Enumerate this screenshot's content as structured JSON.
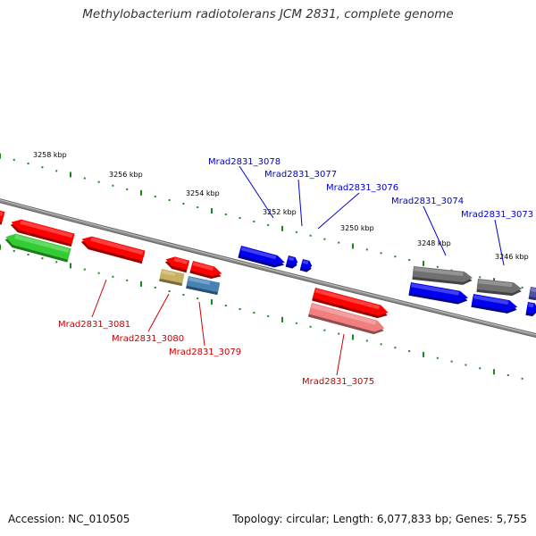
{
  "title": "Methylobacterium radiotolerans JCM 2831, complete genome",
  "footer": {
    "accession": "Accession: NC_010505",
    "topology": "Topology: circular; Length: 6,077,833 bp; Genes: 5,755"
  },
  "colors": {
    "backbone": "#8a8a8a",
    "tick": "#1a8a1a",
    "upper_label": "#0000cc",
    "lower_label": "#cc0000",
    "red": "#ff0000",
    "blue": "#0000ee",
    "green": "#33cc33",
    "gray": "#707070",
    "pink": "#f08080",
    "olive": "#c8b060",
    "steelblue": "#4682b4",
    "purple": "#5050a0"
  },
  "scale_labels": [
    "3258 kbp",
    "3256 kbp",
    "3254 kbp",
    "3252 kbp",
    "3250 kbp",
    "3248 kbp",
    "3246 kbp"
  ],
  "upper_genes": [
    "Mrad2831_3078",
    "Mrad2831_3077",
    "Mrad2831_3076",
    "Mrad2831_3074",
    "Mrad2831_3073"
  ],
  "lower_genes": [
    "Mrad2831_3081",
    "Mrad2831_3080",
    "Mrad2831_3079",
    "Mrad2831_3075"
  ],
  "features": [
    {
      "color": "red",
      "strand": "upper",
      "dir": "left"
    },
    {
      "color": "red",
      "strand": "upper",
      "dir": "left"
    },
    {
      "color": "red",
      "strand": "upper",
      "dir": "left"
    },
    {
      "color": "green",
      "strand": "lower",
      "dir": "left"
    },
    {
      "color": "red",
      "strand": "upper",
      "dir": "left"
    },
    {
      "color": "red",
      "strand": "upper",
      "dir": "right"
    },
    {
      "color": "olive",
      "strand": "lower",
      "dir": "none"
    },
    {
      "color": "steelblue",
      "strand": "lower",
      "dir": "none"
    },
    {
      "color": "blue",
      "strand": "upper",
      "dir": "right"
    },
    {
      "color": "blue",
      "strand": "upper",
      "dir": "right"
    },
    {
      "color": "blue",
      "strand": "upper",
      "dir": "right"
    },
    {
      "color": "red",
      "strand": "upper",
      "dir": "right"
    },
    {
      "color": "pink",
      "strand": "lower",
      "dir": "right"
    },
    {
      "color": "gray",
      "strand": "upper",
      "dir": "right"
    },
    {
      "color": "gray",
      "strand": "upper",
      "dir": "right"
    },
    {
      "color": "blue",
      "strand": "lower",
      "dir": "right"
    },
    {
      "color": "blue",
      "strand": "lower",
      "dir": "right"
    },
    {
      "color": "purple",
      "strand": "upper",
      "dir": "right"
    },
    {
      "color": "blue",
      "strand": "lower",
      "dir": "right"
    }
  ]
}
